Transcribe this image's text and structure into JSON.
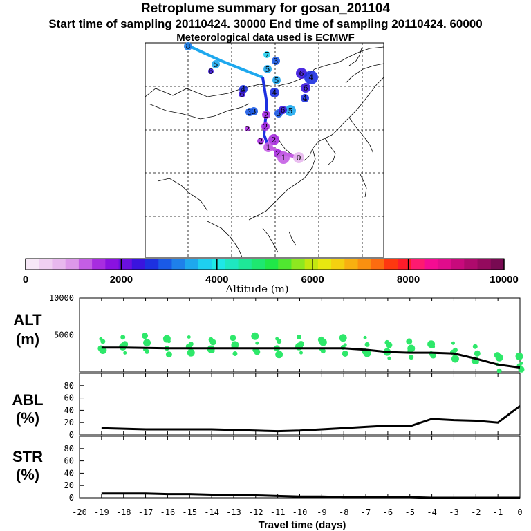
{
  "header": {
    "title": "Retroplume summary for gosan_201104",
    "sampling": "Start time of sampling 20110424. 30000     End time of sampling 20110424. 60000",
    "met": "Meteorological data used is ECMWF"
  },
  "colorbar": {
    "title": "Altitude (m)",
    "labels": [
      "0",
      "2000",
      "4000",
      "6000",
      "8000",
      "10000"
    ],
    "colors": [
      "#f7e8f7",
      "#f0d0f2",
      "#e8b8ee",
      "#dd98ea",
      "#c45ee4",
      "#a82de0",
      "#8a12e0",
      "#6a10e0",
      "#3a14de",
      "#1d30e0",
      "#1a5ae6",
      "#1e80ea",
      "#1ea8ee",
      "#1ed0f0",
      "#1ee8e6",
      "#1ee8c0",
      "#1ee898",
      "#1ee870",
      "#20e848",
      "#50e830",
      "#8ee820",
      "#c4e810",
      "#e8e810",
      "#f4d010",
      "#f8b010",
      "#fa9010",
      "#fc6c10",
      "#fe3810",
      "#fe1c2a",
      "#fe1a70",
      "#f40c92",
      "#e00c8c",
      "#c80a7c",
      "#ae0a6c",
      "#940a5e",
      "#780a52"
    ]
  },
  "map_points": [
    {
      "label": "0",
      "color": "#e8b8ee"
    },
    {
      "label": "1",
      "color": "#c45ee4"
    },
    {
      "label": "2",
      "color": "#a82de0"
    },
    {
      "label": "3",
      "color": "#1a5ae6"
    },
    {
      "label": "4",
      "color": "#1d30e0"
    },
    {
      "label": "5",
      "color": "#1ea8ee"
    },
    {
      "label": "6",
      "color": "#3a14de"
    },
    {
      "label": "7",
      "color": "#1ed0f0"
    },
    {
      "label": "8",
      "color": "#1e80ea"
    }
  ],
  "chart_data": [
    {
      "type": "line",
      "label": "ALT",
      "unit": "(m)",
      "x": [
        -19,
        -18,
        -17,
        -16,
        -15,
        -14,
        -13,
        -12,
        -11,
        -10,
        -9,
        -8,
        -7,
        -6,
        -5,
        -4,
        -3,
        -2,
        -1,
        0
      ],
      "y": [
        3300,
        3300,
        3250,
        3200,
        3200,
        3200,
        3200,
        3200,
        3200,
        3200,
        3200,
        3200,
        3000,
        2700,
        2600,
        2600,
        2500,
        1800,
        1000,
        600
      ],
      "ylim": [
        0,
        10000
      ],
      "yticks": [
        "10000",
        "5000"
      ],
      "scatter_color": "#2ee86a"
    },
    {
      "type": "line",
      "label": "ABL",
      "unit": "(%)",
      "x": [
        -19,
        -18,
        -17,
        -16,
        -15,
        -14,
        -13,
        -12,
        -11,
        -10,
        -9,
        -8,
        -7,
        -6,
        -5,
        -4,
        -3,
        -2,
        -1,
        0
      ],
      "y": [
        11,
        10,
        9,
        9,
        9,
        9,
        8,
        7,
        6,
        7,
        9,
        11,
        13,
        15,
        14,
        26,
        24,
        23,
        20,
        47
      ],
      "ylim": [
        0,
        100
      ],
      "yticks": [
        "80",
        "60",
        "40",
        "20",
        "0"
      ]
    },
    {
      "type": "line",
      "label": "STR",
      "unit": "(%)",
      "x": [
        -19,
        -18,
        -17,
        -16,
        -15,
        -14,
        -13,
        -12,
        -11,
        -10,
        -9,
        -8,
        -7,
        -6,
        -5,
        -4,
        -3,
        -2,
        -1,
        0
      ],
      "y": [
        7,
        7,
        7,
        6,
        6,
        5,
        5,
        4,
        3,
        2,
        2,
        1,
        1,
        1,
        1,
        0,
        0,
        0,
        0,
        0
      ],
      "ylim": [
        0,
        100
      ],
      "yticks": [
        "80",
        "60",
        "40",
        "20",
        "0"
      ]
    }
  ],
  "xaxis": {
    "label": "Travel time (days)",
    "ticks": [
      "-20",
      "-19",
      "-18",
      "-17",
      "-16",
      "-15",
      "-14",
      "-13",
      "-12",
      "-11",
      "-10",
      "-9",
      "-8",
      "-7",
      "-6",
      "-5",
      "-4",
      "-3",
      "-2",
      "-1",
      "0"
    ]
  }
}
